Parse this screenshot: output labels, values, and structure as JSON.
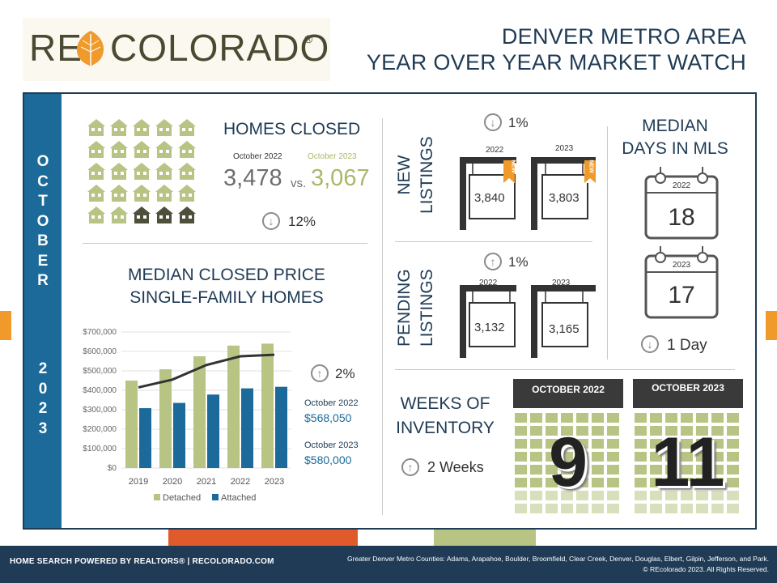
{
  "logo": {
    "part1": "RE",
    "part2": "COLORADO",
    "reg": "®"
  },
  "title": {
    "line1": "DENVER METRO AREA",
    "line2": "YEAR OVER YEAR MARKET WATCH"
  },
  "side": {
    "month": [
      "O",
      "C",
      "T",
      "O",
      "B",
      "E",
      "R"
    ],
    "year": [
      "2",
      "0",
      "2",
      "3"
    ]
  },
  "homes_closed": {
    "title": "HOMES CLOSED",
    "label_2022": "October 2022",
    "label_2023": "October 2023",
    "value_2022": "3,478",
    "vs": "vs.",
    "value_2023": "3,067",
    "change": "12%",
    "direction": "down"
  },
  "median_price": {
    "title_line1": "MEDIAN CLOSED PRICE",
    "title_line2": "SINGLE-FAMILY HOMES",
    "change": "2%",
    "direction": "up",
    "label_2022": "October 2022",
    "value_2022": "$568,050",
    "label_2023": "October 2023",
    "value_2023": "$580,000"
  },
  "chart_data": {
    "type": "bar",
    "categories": [
      "2019",
      "2020",
      "2021",
      "2022",
      "2023"
    ],
    "series": [
      {
        "name": "Detached",
        "values": [
          450000,
          508000,
          575000,
          630000,
          640000
        ],
        "color": "#b7c483"
      },
      {
        "name": "Attached",
        "values": [
          308000,
          335000,
          378000,
          410000,
          418000
        ],
        "color": "#1b6a9a"
      }
    ],
    "line": {
      "values": [
        415000,
        455000,
        530000,
        575000,
        583000
      ],
      "color": "#333333"
    },
    "y_ticks": [
      "$0",
      "$100,000",
      "$200,000",
      "$300,000",
      "$400,000",
      "$500,000",
      "$600,000",
      "$700,000"
    ],
    "ylim": [
      0,
      700000
    ],
    "grid": true,
    "legend": "bottom"
  },
  "new_listings": {
    "label_line1": "NEW",
    "label_line2": "LISTINGS",
    "change": "1%",
    "direction": "down",
    "year_2022": "2022",
    "value_2022": "3,840",
    "year_2023": "2023",
    "value_2023": "3,803",
    "badge": "NEW"
  },
  "pending_listings": {
    "label_line1": "PENDING",
    "label_line2": "LISTINGS",
    "change": "1%",
    "direction": "up",
    "year_2022": "2022",
    "value_2022": "3,132",
    "year_2023": "2023",
    "value_2023": "3,165"
  },
  "days_in_mls": {
    "title_line1": "MEDIAN",
    "title_line2": "DAYS IN MLS",
    "year_2022": "2022",
    "value_2022": "18",
    "year_2023": "2023",
    "value_2023": "17",
    "change": "1 Day",
    "direction": "down"
  },
  "weeks_inventory": {
    "title_line1": "WEEKS OF",
    "title_line2": "INVENTORY",
    "change": "2 Weeks",
    "direction": "up",
    "label_2022": "OCTOBER 2022",
    "value_2022": "9",
    "label_2023": "OCTOBER 2023",
    "value_2023": "11"
  },
  "footer": {
    "left": "HOME SEARCH POWERED BY REALTORS®  |  RECOLORADO.COM",
    "right_line1": "Greater Denver Metro Counties: Adams, Arapahoe, Boulder, Broomfield, Clear Creek, Denver, Douglas, Elbert, Gilpin, Jefferson, and Park.",
    "right_line2": "© REcolorado 2023. All Rights Reserved."
  },
  "colors": {
    "navy": "#1f3b55",
    "blue": "#1b6a9a",
    "green": "#b7c483",
    "orange": "#ef9a2b",
    "dark_house": "#4e503b"
  }
}
